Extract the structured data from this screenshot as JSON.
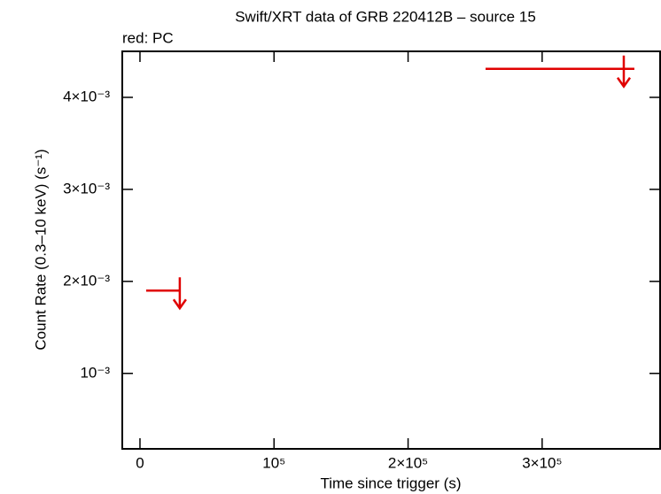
{
  "chart_data": {
    "type": "scatter",
    "title": "Swift/XRT data of GRB 220412B – source 15",
    "subtitle": "red: PC",
    "xlabel": "Time since trigger (s)",
    "ylabel": "Count Rate (0.3–10 keV) (s⁻¹)",
    "xlim": [
      -13200,
      388000
    ],
    "ylim": [
      0.00018,
      0.0045
    ],
    "xticks": [
      0,
      {
        "value": 100000,
        "label": "10⁵"
      },
      {
        "value": 200000,
        "label": "2×10⁵"
      },
      {
        "value": 300000,
        "label": "3×10⁵"
      }
    ],
    "yticks": [
      {
        "value": 0.001,
        "label": "10⁻³"
      },
      {
        "value": 0.002,
        "label": "2×10⁻³"
      },
      {
        "value": 0.003,
        "label": "3×10⁻³"
      },
      {
        "value": 0.004,
        "label": "4×10⁻³"
      }
    ],
    "series": [
      {
        "name": "PC",
        "color": "#e00000",
        "upper_limit": true,
        "x": [
          29700,
          360900
        ],
        "x_start": [
          4600,
          257800
        ],
        "x_end": [
          29700,
          368800
        ],
        "values": [
          0.0019,
          0.00431
        ]
      }
    ]
  }
}
